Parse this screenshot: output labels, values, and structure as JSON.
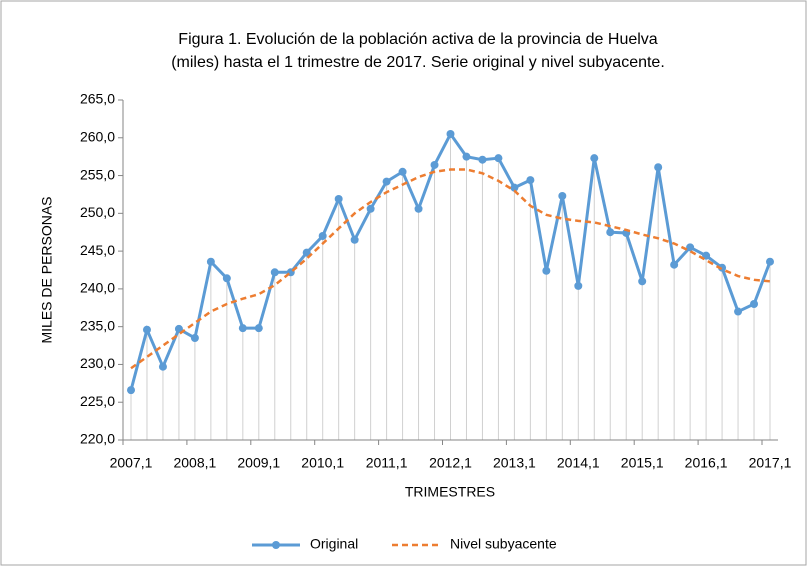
{
  "chart_data": {
    "type": "line",
    "title": [
      "Figura 1. Evolución de la población activa de la provincia de Huelva",
      "(miles) hasta el 1 trimestre de 2017. Serie original y nivel subyacente."
    ],
    "y_label": "MILES DE PERSONAS",
    "x_label": "TRIMESTRES",
    "categories": [
      "2007,1",
      null,
      null,
      null,
      "2008,1",
      null,
      null,
      null,
      "2009,1",
      null,
      null,
      null,
      "2010,1",
      null,
      null,
      null,
      "2011,1",
      null,
      null,
      null,
      "2012,1",
      null,
      null,
      null,
      "2013,1",
      null,
      null,
      null,
      "2014,1",
      null,
      null,
      null,
      "2015,1",
      null,
      null,
      null,
      "2016,1",
      null,
      null,
      null,
      "2017,1"
    ],
    "series": [
      {
        "name": "Original",
        "color": "#5b9bd5",
        "style": "solid",
        "markers": true,
        "values": [
          226.6,
          234.6,
          229.7,
          234.7,
          233.5,
          243.6,
          241.4,
          234.8,
          234.8,
          242.2,
          242.2,
          244.8,
          247.0,
          251.9,
          246.5,
          250.6,
          254.2,
          255.5,
          250.6,
          256.4,
          260.5,
          257.5,
          257.1,
          257.3,
          253.4,
          254.4,
          242.4,
          252.3,
          240.4,
          257.3,
          247.5,
          247.4,
          241.0,
          256.1,
          243.2,
          245.5,
          244.4,
          242.8,
          237.0,
          238.0,
          243.6
        ]
      },
      {
        "name": "Nivel subyacente",
        "color": "#ed7d31",
        "style": "dashed",
        "markers": false,
        "values": [
          229.5,
          231.0,
          232.5,
          234.0,
          235.5,
          237.0,
          238.0,
          238.7,
          239.3,
          240.5,
          242.2,
          244.0,
          246.0,
          248.0,
          250.0,
          251.5,
          252.8,
          253.8,
          254.8,
          255.5,
          255.8,
          255.8,
          255.3,
          254.3,
          253.0,
          251.0,
          249.8,
          249.3,
          249.0,
          248.8,
          248.3,
          247.8,
          247.2,
          246.7,
          246.0,
          245.0,
          243.8,
          242.6,
          241.7,
          241.2,
          241.0
        ]
      }
    ],
    "ylim": [
      220,
      265
    ],
    "yticks": [
      {
        "value": 220,
        "label": "220,0"
      },
      {
        "value": 225,
        "label": "225,0"
      },
      {
        "value": 230,
        "label": "230,0"
      },
      {
        "value": 235,
        "label": "235,0"
      },
      {
        "value": 240,
        "label": "240,0"
      },
      {
        "value": 245,
        "label": "245,0"
      },
      {
        "value": 250,
        "label": "250,0"
      },
      {
        "value": 255,
        "label": "255,0"
      },
      {
        "value": 260,
        "label": "260,0"
      },
      {
        "value": 265,
        "label": "265,0"
      }
    ],
    "drop_lines": true,
    "legend": "bottom"
  }
}
